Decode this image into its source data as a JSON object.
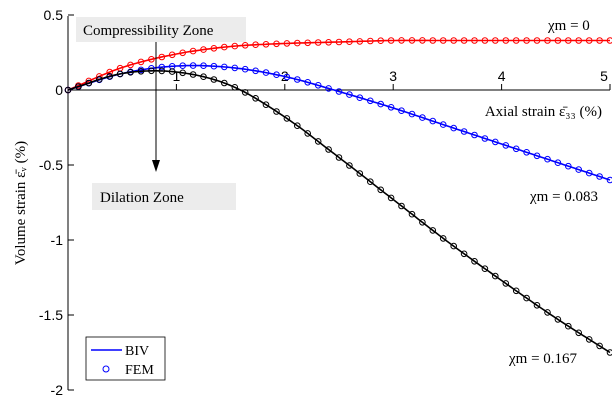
{
  "chart_data": {
    "type": "line",
    "xlabel": "Axial strain ε̄₃₃ (%)",
    "ylabel": "Volume strain ε̄ᵥ (%)",
    "xlim": [
      0,
      5
    ],
    "ylim": [
      -2,
      0.5
    ],
    "xticks": [
      "1",
      "2",
      "3",
      "4",
      "5"
    ],
    "yticks": [
      "0.5",
      "0",
      "-0.5",
      "-1",
      "-1.5",
      "-2"
    ],
    "grid": false,
    "legend": {
      "position": "bottom-left",
      "entries": [
        "BIV",
        "FEM"
      ]
    },
    "series": [
      {
        "name": "χm = 0",
        "color": "#ff0000",
        "x": [
          0,
          0.5,
          1,
          1.5,
          2,
          2.5,
          3,
          3.5,
          4,
          4.5,
          5
        ],
        "values": [
          0,
          0.15,
          0.24,
          0.29,
          0.31,
          0.32,
          0.33,
          0.33,
          0.33,
          0.33,
          0.33
        ]
      },
      {
        "name": "χm = 0.083",
        "color": "#0000ff",
        "x": [
          0,
          0.5,
          1,
          1.5,
          2,
          2.5,
          3,
          3.5,
          4,
          4.5,
          5
        ],
        "values": [
          0,
          0.11,
          0.16,
          0.15,
          0.09,
          -0.01,
          -0.12,
          -0.24,
          -0.36,
          -0.48,
          -0.6
        ]
      },
      {
        "name": "χm = 0.167",
        "color": "#000000",
        "x": [
          0,
          0.5,
          1,
          1.5,
          2,
          2.5,
          3,
          3.5,
          4,
          4.5,
          5
        ],
        "values": [
          0,
          0.11,
          0.12,
          0.03,
          -0.18,
          -0.45,
          -0.73,
          -1.01,
          -1.27,
          -1.52,
          -1.75
        ]
      }
    ],
    "annotations": [
      {
        "text": "Compressibility Zone"
      },
      {
        "text": "Dilation Zone"
      },
      {
        "text": "χm = 0"
      },
      {
        "text": "χm = 0.083"
      },
      {
        "text": "χm = 0.167"
      }
    ]
  }
}
